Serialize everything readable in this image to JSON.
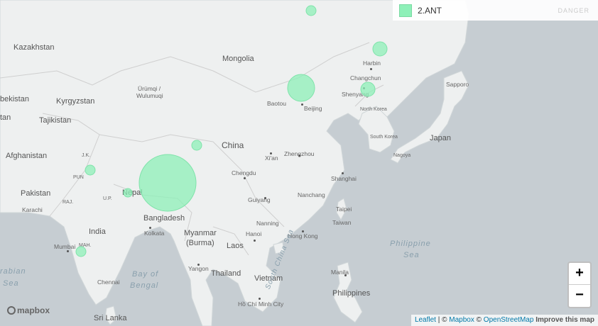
{
  "legend": {
    "label": "2.ANT",
    "color": "#8ef0b8"
  },
  "faded_label": "DANGER",
  "countries": [
    "Kazakhstan",
    "Mongolia",
    "Kyrgyzstan",
    "Tajikistan",
    "Afghanistan",
    "Pakistan",
    "China",
    "Nepal",
    "India",
    "Bangladesh",
    "Myanmar (Burma)",
    "Laos",
    "Thailand",
    "Vietnam",
    "Philippines",
    "Sri Lanka",
    "Japan",
    "North Korea",
    "South Korea",
    "Taiwan"
  ],
  "country_text": {
    "kazakhstan": "Kazakhstan",
    "mongolia": "Mongolia",
    "uzbekistan": "bekistan",
    "kyrgyzstan": "Kyrgyzstan",
    "tajikistan": "Tajikistan",
    "afghanistan": "Afghanistan",
    "pakistan": "Pakistan",
    "china": "China",
    "nepal": "Nepal",
    "india": "India",
    "bangladesh": "Bangladesh",
    "myanmar1": "Myanmar",
    "myanmar2": "(Burma)",
    "laos": "Laos",
    "thailand": "Thailand",
    "vietnam": "Vietnam",
    "philippines": "Philippines",
    "srilanka": "Sri Lanka",
    "japan": "Japan",
    "tm": "tan"
  },
  "cities": {
    "urumqi1": "Ürümqi /",
    "urumqi2": "Wulumuqi",
    "baotou": "Baotou",
    "beijing": "Beijing",
    "harbin": "Harbin",
    "changchun": "Changchun",
    "shenyang": "Shenyang",
    "nkorea": "North Korea",
    "skorea": "South Korea",
    "sapporo": "Sapporo",
    "chengdu": "Chengdu",
    "xian": "Xi'an",
    "zhengzhou": "Zhengzhou",
    "shanghai": "Shanghai",
    "nanchang": "Nanchang",
    "guiyang": "Guiyang",
    "taipei": "Taipei",
    "taiwan": "Taiwan",
    "nanning": "Nanning",
    "hanoi": "Hanoi",
    "hongkong": "Hong Kong",
    "kolkata": "Kolkata",
    "karachi": "Karachi",
    "mumbai": "Mumbai",
    "chennai": "Chennai",
    "yangon": "Yangon",
    "manila": "Manila",
    "hochiminh": "Hồ Chí Minh City",
    "mah": "MAH.",
    "up": "U.P.",
    "jk": "J.K.",
    "pun": "PUN",
    "raj": "RAJ.",
    "nagoya": "Nagoya"
  },
  "seas": {
    "bay1": "Bay of",
    "bay2": "Bengal",
    "arab1": "rabian",
    "arab2": "Sea",
    "phil1": "Philippine",
    "phil2": "Sea",
    "scs": "South China Sea"
  },
  "zoom": {
    "in": "+",
    "out": "−"
  },
  "attribution": {
    "leaflet": "Leaflet",
    "sep": " | © ",
    "mapbox": "Mapbox",
    "c2": " © ",
    "osm": "OpenStreetMap",
    "improve": "Improve this map"
  },
  "logo": "mapbox",
  "bubbles": [
    {
      "name": "bubble-lhasa",
      "size": "very large"
    },
    {
      "name": "bubble-inner-mongolia",
      "size": "large"
    },
    {
      "name": "bubble-harbin",
      "size": "small"
    },
    {
      "name": "bubble-shenyang",
      "size": "small"
    },
    {
      "name": "bubble-north",
      "size": "small"
    },
    {
      "name": "bubble-qinghai",
      "size": "small"
    },
    {
      "name": "bubble-kashmir",
      "size": "small"
    },
    {
      "name": "bubble-nepal",
      "size": "small"
    },
    {
      "name": "bubble-mumbai",
      "size": "small"
    }
  ]
}
